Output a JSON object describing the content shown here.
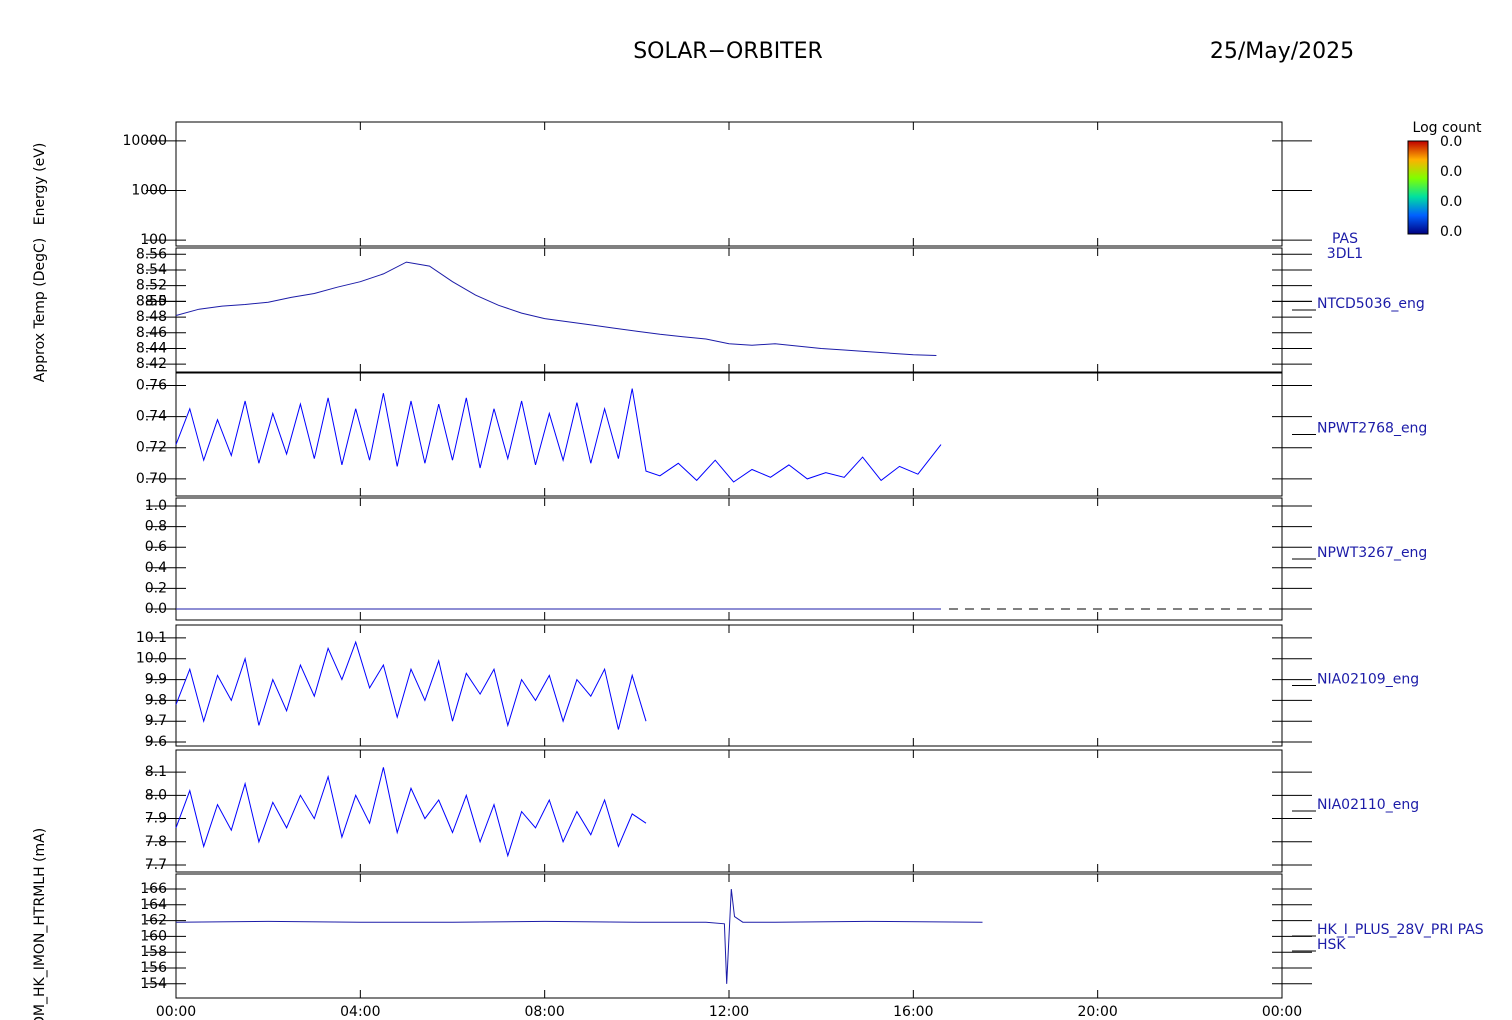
{
  "header": {
    "title": "SOLAR−ORBITER",
    "date": "25/May/2025"
  },
  "chart_data": [
    {
      "type": "spectrogram",
      "ylabel": "Energy (eV)",
      "log_scale": true,
      "ylim": [
        76,
        24000
      ],
      "yticks": [
        100,
        1000,
        10000
      ],
      "label": "PAS",
      "sublabel": "3DL1",
      "colorbar": {
        "title": "Log count",
        "labels": [
          "0.0",
          "0.0",
          "0.0",
          "0.0"
        ]
      }
    },
    {
      "type": "line",
      "ylabel": "Approx Temp (DegC)",
      "label": "NTCD5036_eng",
      "ylim": [
        8.41,
        8.568
      ],
      "yticks": [
        8.42,
        8.44,
        8.46,
        8.48,
        8.5,
        {
          "value": 8.5,
          "label": "8.50"
        },
        8.52,
        8.54,
        8.56
      ],
      "series": [
        {
          "name": "NTCD5036_eng",
          "color": "#1c1ca8",
          "x": [
            0,
            0.5,
            1,
            1.5,
            2,
            2.5,
            3,
            3.5,
            4,
            4.5,
            5,
            5.5,
            6,
            6.5,
            7,
            7.5,
            8,
            8.5,
            9,
            9.5,
            10,
            10.5,
            11,
            11.5,
            12,
            12.5,
            13,
            13.5,
            14,
            14.5,
            15,
            15.5,
            16,
            16.5
          ],
          "values": [
            8.482,
            8.49,
            8.494,
            8.496,
            8.499,
            8.505,
            8.51,
            8.518,
            8.525,
            8.535,
            8.55,
            8.545,
            8.525,
            8.508,
            8.495,
            8.485,
            8.478,
            8.474,
            8.47,
            8.466,
            8.462,
            8.458,
            8.455,
            8.452,
            8.446,
            8.444,
            8.446,
            8.443,
            8.44,
            8.438,
            8.436,
            8.434,
            8.432,
            8.431
          ]
        }
      ]
    },
    {
      "type": "line",
      "label": "NPWT2768_eng",
      "ylim": [
        0.689,
        0.768
      ],
      "yticks": [
        {
          "value": 0.7,
          "label": "0.70"
        },
        0.72,
        0.74,
        0.76
      ],
      "series": [
        {
          "name": "NPWT2768_eng",
          "color": "#0000ff",
          "x": [
            0,
            0.3,
            0.6,
            0.9,
            1.2,
            1.5,
            1.8,
            2.1,
            2.4,
            2.7,
            3.0,
            3.3,
            3.6,
            3.9,
            4.2,
            4.5,
            4.8,
            5.1,
            5.4,
            5.7,
            6.0,
            6.3,
            6.6,
            6.9,
            7.2,
            7.5,
            7.8,
            8.1,
            8.4,
            8.7,
            9.0,
            9.3,
            9.6,
            9.9,
            10.2,
            10.5,
            10.9,
            11.3,
            11.7,
            12.1,
            12.5,
            12.9,
            13.3,
            13.7,
            14.1,
            14.5,
            14.9,
            15.3,
            15.7,
            16.1,
            16.6
          ],
          "values": [
            0.722,
            0.745,
            0.712,
            0.738,
            0.715,
            0.75,
            0.71,
            0.742,
            0.716,
            0.748,
            0.713,
            0.752,
            0.709,
            0.745,
            0.712,
            0.755,
            0.708,
            0.75,
            0.71,
            0.748,
            0.712,
            0.752,
            0.707,
            0.745,
            0.713,
            0.75,
            0.709,
            0.742,
            0.712,
            0.749,
            0.71,
            0.745,
            0.713,
            0.758,
            0.705,
            0.702,
            0.71,
            0.699,
            0.712,
            0.698,
            0.706,
            0.701,
            0.709,
            0.7,
            0.704,
            0.701,
            0.714,
            0.699,
            0.708,
            0.703,
            0.722
          ]
        }
      ]
    },
    {
      "type": "line",
      "label": "NPWT3267_eng",
      "ylim": [
        -0.107,
        1.078
      ],
      "yticks": [
        {
          "value": 0,
          "label": "0.0"
        },
        0.2,
        0.4,
        0.6,
        0.8,
        {
          "value": 1,
          "label": "1.0"
        }
      ],
      "series": [
        {
          "name": "NPWT3267_eng",
          "color": "#1c1ca8",
          "x": [
            0,
            16.6
          ],
          "values": [
            0,
            0
          ]
        }
      ]
    },
    {
      "type": "line",
      "label": "NIA02109_eng",
      "ylim": [
        9.581,
        10.162
      ],
      "yticks": [
        9.6,
        9.7,
        9.8,
        9.9,
        {
          "value": 10,
          "label": "10.0"
        },
        10.1
      ],
      "series": [
        {
          "name": "NIA02109_eng",
          "color": "#0000ff",
          "x": [
            0,
            0.3,
            0.6,
            0.9,
            1.2,
            1.5,
            1.8,
            2.1,
            2.4,
            2.7,
            3.0,
            3.3,
            3.6,
            3.9,
            4.2,
            4.5,
            4.8,
            5.1,
            5.4,
            5.7,
            6.0,
            6.3,
            6.6,
            6.9,
            7.2,
            7.5,
            7.8,
            8.1,
            8.4,
            8.7,
            9.0,
            9.3,
            9.6,
            9.9,
            10.2
          ],
          "values": [
            9.78,
            9.95,
            9.7,
            9.92,
            9.8,
            10.0,
            9.68,
            9.9,
            9.75,
            9.97,
            9.82,
            10.05,
            9.9,
            10.08,
            9.86,
            9.97,
            9.72,
            9.95,
            9.8,
            9.99,
            9.7,
            9.93,
            9.83,
            9.95,
            9.68,
            9.9,
            9.8,
            9.92,
            9.7,
            9.9,
            9.82,
            9.95,
            9.66,
            9.92,
            9.7
          ]
        }
      ]
    },
    {
      "type": "line",
      "label": "NIA02110_eng",
      "ylim": [
        7.67,
        8.195
      ],
      "yticks": [
        7.7,
        7.8,
        7.9,
        {
          "value": 8,
          "label": "8.0"
        },
        8.1
      ],
      "series": [
        {
          "name": "NIA02110_eng",
          "color": "#0000ff",
          "x": [
            0,
            0.3,
            0.6,
            0.9,
            1.2,
            1.5,
            1.8,
            2.1,
            2.4,
            2.7,
            3.0,
            3.3,
            3.6,
            3.9,
            4.2,
            4.5,
            4.8,
            5.1,
            5.4,
            5.7,
            6.0,
            6.3,
            6.6,
            6.9,
            7.2,
            7.5,
            7.8,
            8.1,
            8.4,
            8.7,
            9.0,
            9.3,
            9.6,
            9.9,
            10.2
          ],
          "values": [
            7.86,
            8.02,
            7.78,
            7.96,
            7.85,
            8.05,
            7.8,
            7.97,
            7.86,
            8.0,
            7.9,
            8.08,
            7.82,
            8.0,
            7.88,
            8.12,
            7.84,
            8.03,
            7.9,
            7.98,
            7.84,
            8.0,
            7.8,
            7.96,
            7.74,
            7.93,
            7.86,
            7.98,
            7.8,
            7.93,
            7.83,
            7.98,
            7.78,
            7.92,
            7.88
          ]
        }
      ]
    },
    {
      "type": "line",
      "ylabel": "PSDM_HK_IMON_HTRMLH (mA)",
      "label": "HK_I_PLUS_28V_PRI PAS",
      "sublabel": "HSK",
      "ylim": [
        152.2,
        167.9
      ],
      "yticks": [
        154,
        156,
        158,
        160,
        162,
        164,
        166
      ],
      "xlim": [
        0,
        24
      ],
      "xticks": [
        {
          "value": 0,
          "label": "00:00"
        },
        {
          "value": 4,
          "label": "04:00"
        },
        {
          "value": 8,
          "label": "08:00"
        },
        {
          "value": 12,
          "label": "12:00"
        },
        {
          "value": 16,
          "label": "16:00"
        },
        {
          "value": 20,
          "label": "20:00"
        },
        {
          "value": 24,
          "label": "00:00"
        }
      ],
      "series": [
        {
          "name": "HK_I_PLUS_28V_PRI PAS",
          "color": "#1c1ca8",
          "x": [
            0,
            2,
            4,
            6,
            8,
            10,
            11.5,
            11.9,
            11.95,
            12.05,
            12.12,
            12.3,
            13,
            15,
            17.5
          ],
          "values": [
            161.8,
            161.9,
            161.8,
            161.8,
            161.9,
            161.8,
            161.8,
            161.6,
            154,
            166,
            162.5,
            161.8,
            161.8,
            161.9,
            161.8
          ]
        }
      ]
    }
  ]
}
